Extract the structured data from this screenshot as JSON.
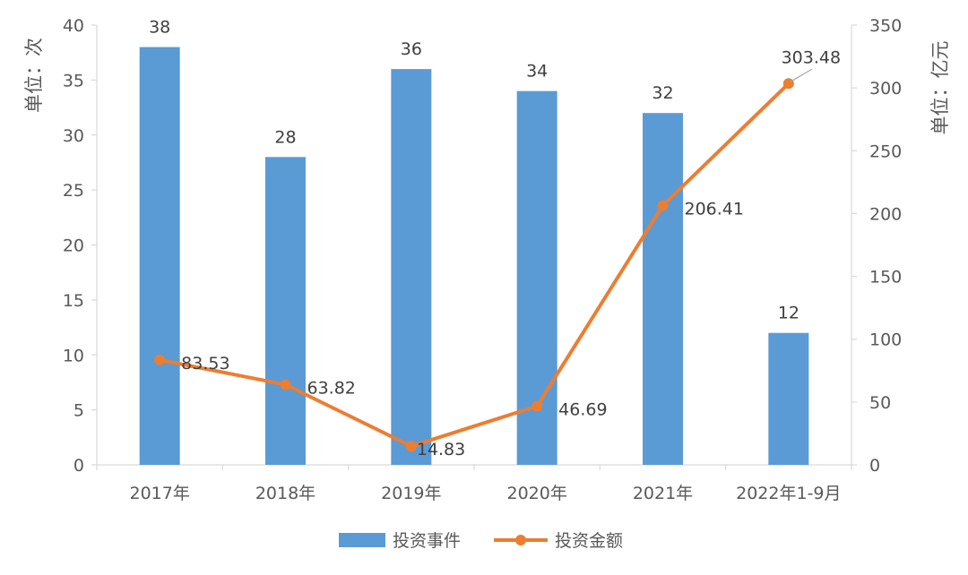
{
  "chart_data": {
    "type": "bar",
    "categories": [
      "2017年",
      "2018年",
      "2019年",
      "2020年",
      "2021年",
      "2022年1-9月"
    ],
    "series": [
      {
        "name": "投资事件",
        "type": "bar",
        "axis": "left",
        "values": [
          38,
          28,
          36,
          34,
          32,
          12
        ]
      },
      {
        "name": "投资金额",
        "type": "line",
        "axis": "right",
        "values": [
          83.53,
          63.82,
          14.83,
          46.69,
          206.41,
          303.48
        ]
      }
    ],
    "title": "",
    "ylabel_left": "单位：次",
    "ylabel_right": "单位：亿元",
    "ylim_left": [
      0,
      40
    ],
    "ylim_right": [
      0,
      350
    ],
    "yticks_left": [
      0,
      5,
      10,
      15,
      20,
      25,
      30,
      35,
      40
    ],
    "yticks_right": [
      0,
      50,
      100,
      150,
      200,
      250,
      300,
      350
    ],
    "grid": false,
    "legend_position": "bottom",
    "colors": {
      "bar": "#5B9BD5",
      "line": "#ED7D31",
      "axis": "#D9D9D9",
      "text": "#595959",
      "label": "#404040"
    }
  }
}
